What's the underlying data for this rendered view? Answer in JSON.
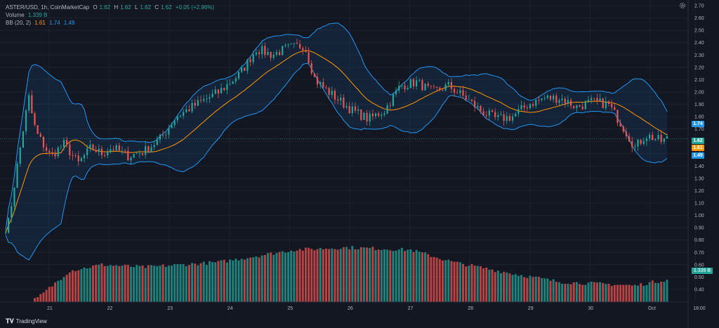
{
  "header": {
    "symbol": "ASTER/USD, 1h, CoinMarketCap",
    "o_label": "O",
    "o": "1.62",
    "h_label": "H",
    "h": "1.62",
    "l_label": "L",
    "l": "1.62",
    "c_label": "C",
    "c": "1.62",
    "change": "+0.05 (+2.96%)",
    "volume_label": "Volume",
    "volume": "1.339 B",
    "bb_label": "BB (20, 2)",
    "bb_mid": "1.61",
    "bb_upper": "1.74",
    "bb_lower": "1.49"
  },
  "tags": {
    "upper": "1.74",
    "close": "1.62",
    "mid": "1.61",
    "lower": "1.49",
    "volume": "1.339 B"
  },
  "colors": {
    "up": "#26a69a",
    "down": "#ef5350",
    "basis": "#ff9800",
    "band": "#2196f3",
    "band_fill": "rgba(33,150,243,0.10)",
    "background": "#131722"
  },
  "brand": {
    "icon": "tradingview-logo-icon",
    "name": "TradingView"
  },
  "chart_data": {
    "type": "candlestick",
    "symbol": "ASTER/USD",
    "interval": "1h",
    "source": "CoinMarketCap",
    "ylim": [
      0.35,
      2.72
    ],
    "y_ticks": [
      "2.70",
      "2.60",
      "2.50",
      "2.40",
      "2.30",
      "2.20",
      "2.10",
      "2.00",
      "1.90",
      "1.80",
      "1.70",
      "1.60",
      "1.50",
      "1.40",
      "1.30",
      "1.20",
      "1.10",
      "1.00",
      "0.90",
      "0.80",
      "0.70",
      "0.60",
      "0.50",
      "0.40"
    ],
    "x_ticks": [
      "21",
      "22",
      "23",
      "24",
      "25",
      "26",
      "27",
      "28",
      "29",
      "30",
      "Oct",
      "18:00"
    ],
    "close_path": {
      "x": [
        "21",
        "22",
        "23",
        "24",
        "25",
        "26",
        "27",
        "28",
        "29",
        "30",
        "Oct"
      ],
      "y": [
        1.9,
        1.45,
        1.5,
        2.15,
        2.35,
        1.85,
        2.05,
        1.95,
        1.85,
        1.95,
        1.62
      ]
    },
    "close_waypoints": [
      [
        0.0,
        0.9
      ],
      [
        0.03,
        0.95
      ],
      [
        0.1,
        1.35
      ],
      [
        0.18,
        1.78
      ],
      [
        0.22,
        1.96
      ],
      [
        0.26,
        1.75
      ],
      [
        0.3,
        1.65
      ],
      [
        0.42,
        1.48
      ],
      [
        0.55,
        1.58
      ],
      [
        0.68,
        1.42
      ],
      [
        0.8,
        1.55
      ],
      [
        0.9,
        1.5
      ],
      [
        1.0,
        1.55
      ],
      [
        1.15,
        1.48
      ],
      [
        1.3,
        1.52
      ],
      [
        1.45,
        1.62
      ],
      [
        1.6,
        1.8
      ],
      [
        1.75,
        1.88
      ],
      [
        2.0,
        2.0
      ],
      [
        2.2,
        2.15
      ],
      [
        2.35,
        2.35
      ],
      [
        2.5,
        2.3
      ],
      [
        2.62,
        2.35
      ],
      [
        2.8,
        2.38
      ],
      [
        2.9,
        2.1
      ],
      [
        3.0,
        2.02
      ],
      [
        3.1,
        1.95
      ],
      [
        3.25,
        1.85
      ],
      [
        3.4,
        1.78
      ],
      [
        3.55,
        1.85
      ],
      [
        3.7,
        2.05
      ],
      [
        3.85,
        2.08
      ],
      [
        4.0,
        2.0
      ],
      [
        4.15,
        2.05
      ],
      [
        4.3,
        1.96
      ],
      [
        4.45,
        1.85
      ],
      [
        4.6,
        1.78
      ],
      [
        4.75,
        1.8
      ],
      [
        4.9,
        1.9
      ],
      [
        5.05,
        1.95
      ],
      [
        5.2,
        1.95
      ],
      [
        5.35,
        1.88
      ],
      [
        5.5,
        1.92
      ],
      [
        5.65,
        1.9
      ],
      [
        5.8,
        1.7
      ],
      [
        5.9,
        1.55
      ],
      [
        6.0,
        1.65
      ],
      [
        6.1,
        1.62
      ],
      [
        6.15,
        1.6
      ],
      [
        6.2,
        1.62
      ]
    ],
    "volume_axis_label": "1.339 B",
    "volume_profile": [
      [
        0,
        0.18
      ],
      [
        0.3,
        0.33
      ],
      [
        0.6,
        0.55
      ],
      [
        0.9,
        0.6
      ],
      [
        1.3,
        0.58
      ],
      [
        2,
        0.62
      ],
      [
        2.7,
        0.72
      ],
      [
        3.2,
        0.74
      ],
      [
        3.8,
        0.72
      ],
      [
        4.2,
        0.62
      ],
      [
        4.8,
        0.52
      ],
      [
        5.2,
        0.46
      ],
      [
        5.7,
        0.44
      ],
      [
        5.9,
        0.43
      ],
      [
        6.2,
        0.48
      ]
    ],
    "indicators": {
      "bollinger": {
        "period": 20,
        "stddev": 2,
        "basis": 1.61,
        "upper": 1.74,
        "lower": 1.49
      }
    },
    "last_price": 1.62
  }
}
